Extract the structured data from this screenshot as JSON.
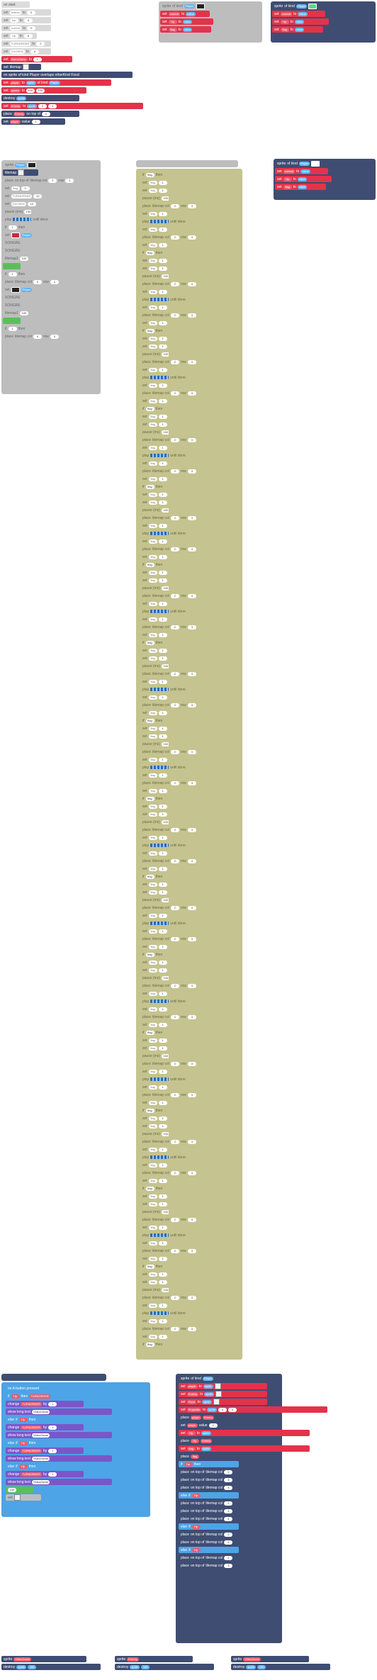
{
  "blocks": {
    "set_var_label": "set",
    "to_label": "to",
    "on_start_label": "on start",
    "pause_label": "pause (ms)",
    "forever_label": "forever",
    "if_label": "if",
    "then_label": "then",
    "else_label": "else",
    "while_label": "while",
    "play_label": "play",
    "until_done_label": "until done",
    "change_label": "change",
    "by_label": "by",
    "show_long_text_label": "show long text",
    "overlap_label": "on sprite of kind Player overlaps otherKind Food",
    "game_over_label": "game over",
    "tilemap_label": "tilemap",
    "sprite_label": "sprite",
    "of_kind_label": "of kind",
    "player_label": "Player",
    "enemy_label": "Enemy",
    "food_label": "Food",
    "projectile_label": "Projectile",
    "place_label": "place",
    "on_top_of_label": "on top of",
    "tilemap_col_label": "tilemap col",
    "row_label": "row",
    "destroy_label": "destroy",
    "set_image_label": "set image",
    "value_label": "value",
    "bottom_label": "bottom",
    "on_button_label": "on A button pressed",
    "variables": [
      "bottom",
      "top",
      "current",
      "player",
      "Hp",
      "flag",
      "TURNORDER",
      "CHOSEN",
      "tilemap1",
      "VideoGame",
      "SONGRE",
      "speed"
    ],
    "numbers": [
      "0",
      "1",
      "2",
      "3",
      "4",
      "5",
      "10",
      "16",
      "100",
      "500",
      "1000"
    ]
  }
}
